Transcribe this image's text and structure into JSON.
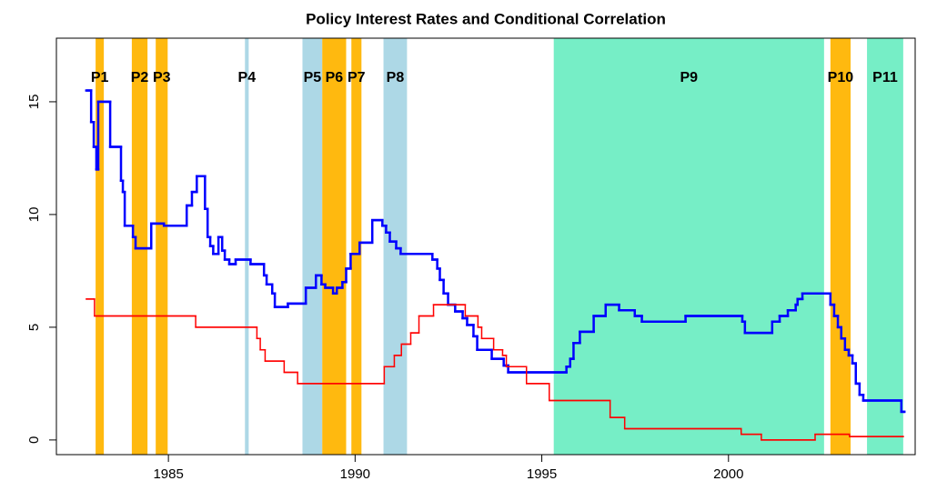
{
  "chart_data": {
    "type": "step",
    "title": "Policy Interest Rates and Conditional Correlation",
    "xlim": [
      1982,
      2005
    ],
    "xticks": [
      1985,
      1990,
      1995,
      2000
    ],
    "ylim": [
      -0.65,
      17.82
    ],
    "yticks": [
      0,
      5,
      10,
      15
    ],
    "periods": [
      {
        "label": "P1",
        "start": 1983.05,
        "end": 1983.27,
        "color": "#FFB90F"
      },
      {
        "label": "P2",
        "start": 1984.02,
        "end": 1984.44,
        "color": "#FFB90F"
      },
      {
        "label": "P3",
        "start": 1984.66,
        "end": 1984.98,
        "color": "#FFB90F"
      },
      {
        "label": "P4",
        "start": 1987.05,
        "end": 1987.15,
        "color": "#ADD8E6"
      },
      {
        "label": "P5",
        "start": 1988.59,
        "end": 1989.12,
        "color": "#ADD8E6"
      },
      {
        "label": "P6",
        "start": 1989.12,
        "end": 1989.76,
        "color": "#FFB90F"
      },
      {
        "label": "P7",
        "start": 1989.9,
        "end": 1990.17,
        "color": "#FFB90F"
      },
      {
        "label": "P8",
        "start": 1990.76,
        "end": 1991.39,
        "color": "#ADD8E6"
      },
      {
        "label": "P9",
        "start": 1995.32,
        "end": 2002.56,
        "color": "#76EEC6"
      },
      {
        "label": "P10",
        "start": 2002.73,
        "end": 2003.27,
        "color": "#FFB90F"
      },
      {
        "label": "P11",
        "start": 2003.71,
        "end": 2004.68,
        "color": "#76EEC6"
      }
    ],
    "series": [
      {
        "color": "#0000FF",
        "width": 2.5,
        "x": [
          1982.8,
          1982.93,
          1983.0,
          1983.07,
          1983.12,
          1983.44,
          1983.73,
          1983.78,
          1983.83,
          1984.05,
          1984.12,
          1984.54,
          1984.88,
          1985.49,
          1985.63,
          1985.76,
          1985.98,
          1986.05,
          1986.12,
          1986.2,
          1986.34,
          1986.44,
          1986.51,
          1986.63,
          1986.8,
          1987.2,
          1987.56,
          1987.63,
          1987.78,
          1987.85,
          1988.2,
          1988.68,
          1988.95,
          1989.1,
          1989.2,
          1989.41,
          1989.51,
          1989.66,
          1989.76,
          1989.88,
          1990.12,
          1990.46,
          1990.73,
          1990.83,
          1990.93,
          1991.1,
          1991.22,
          1992.07,
          1992.2,
          1992.27,
          1992.37,
          1992.49,
          1992.68,
          1992.88,
          1993.0,
          1993.17,
          1993.27,
          1993.66,
          1993.98,
          1994.1,
          1995.66,
          1995.76,
          1995.85,
          1996.02,
          1996.39,
          1996.71,
          1997.07,
          1997.49,
          1997.68,
          1998.85,
          2000.37,
          2000.44,
          2001.17,
          2001.37,
          2001.59,
          2001.8,
          2001.85,
          2001.98,
          2002.73,
          2002.83,
          2002.93,
          2003.02,
          2003.12,
          2003.22,
          2003.32,
          2003.41,
          2003.51,
          2003.61,
          2004.63,
          2004.71
        ],
        "values": [
          15.5,
          14.1,
          13,
          12,
          15,
          13,
          11.5,
          11,
          9.5,
          9,
          8.5,
          9.6,
          9.5,
          10.4,
          11,
          11.7,
          10.25,
          9,
          8.6,
          8.25,
          9,
          8.4,
          8,
          7.8,
          8,
          7.8,
          7.3,
          6.9,
          6.5,
          5.9,
          6.05,
          6.75,
          7.3,
          6.9,
          6.75,
          6.5,
          6.75,
          7,
          7.6,
          8.25,
          8.75,
          9.75,
          9.5,
          9.2,
          8.8,
          8.5,
          8.25,
          8,
          7.6,
          7.1,
          6.5,
          6,
          5.7,
          5.4,
          5.1,
          4.6,
          4,
          3.6,
          3.3,
          3,
          3.25,
          3.6,
          4.3,
          4.8,
          5.5,
          6,
          5.75,
          5.5,
          5.25,
          5.5,
          5.25,
          4.75,
          5.25,
          5.5,
          5.75,
          6,
          6.25,
          6.5,
          6,
          5.5,
          5,
          4.5,
          4,
          3.75,
          3.4,
          2.5,
          2,
          1.75,
          1.25,
          1.25
        ]
      },
      {
        "color": "#FF0000",
        "width": 1.5,
        "x": [
          1982.8,
          1983.02,
          1985.73,
          1987.37,
          1987.46,
          1987.59,
          1988.1,
          1988.46,
          1990.78,
          1991.05,
          1991.24,
          1991.49,
          1991.71,
          1992.1,
          1992.95,
          1993.29,
          1993.39,
          1993.71,
          1993.95,
          1994.05,
          1994.59,
          1995.2,
          1996.83,
          1997.22,
          2000.34,
          2000.88,
          2002.32,
          2003.24,
          2004.68
        ],
        "values": [
          6.25,
          5.5,
          5,
          4.5,
          4,
          3.5,
          3,
          2.5,
          3.25,
          3.75,
          4.25,
          4.75,
          5.5,
          6,
          5.5,
          5,
          4.5,
          4,
          3.75,
          3.25,
          2.5,
          1.75,
          1,
          0.5,
          0.25,
          0,
          0.25,
          0.15,
          0.15
        ]
      }
    ]
  }
}
